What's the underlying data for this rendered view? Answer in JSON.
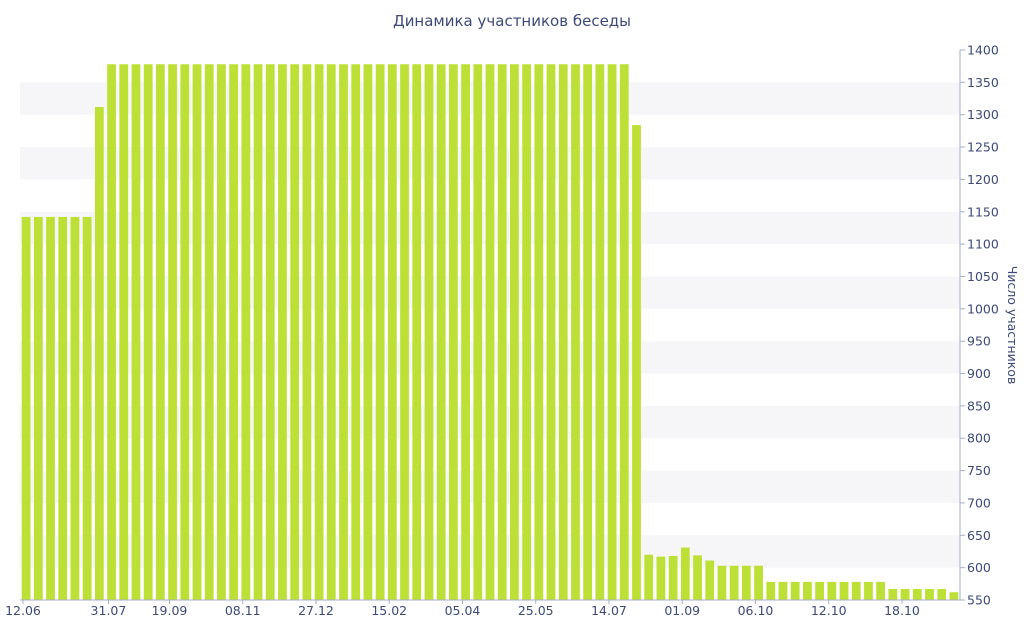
{
  "chart_data": {
    "type": "bar",
    "title": "Динамика участников беседы",
    "xlabel": "",
    "ylabel": "Число участников",
    "ylim": [
      550,
      1400
    ],
    "y_ticks": [
      550,
      600,
      650,
      700,
      750,
      800,
      850,
      900,
      950,
      1000,
      1050,
      1100,
      1150,
      1200,
      1250,
      1300,
      1350,
      1400
    ],
    "y_axis_side": "right",
    "grid": "alternating horizontal bands",
    "bar_color": "#bde037",
    "x_tick_labels": [
      {
        "index": 0,
        "label": "12.06"
      },
      {
        "index": 7,
        "label": "31.07"
      },
      {
        "index": 12,
        "label": "19.09"
      },
      {
        "index": 18,
        "label": "08.11"
      },
      {
        "index": 24,
        "label": "27.12"
      },
      {
        "index": 30,
        "label": "15.02"
      },
      {
        "index": 36,
        "label": "05.04"
      },
      {
        "index": 42,
        "label": "25.05"
      },
      {
        "index": 48,
        "label": "14.07"
      },
      {
        "index": 54,
        "label": "01.09"
      },
      {
        "index": 60,
        "label": "06.10"
      },
      {
        "index": 66,
        "label": "12.10"
      },
      {
        "index": 72,
        "label": "18.10"
      }
    ],
    "values": [
      1142,
      1142,
      1142,
      1142,
      1142,
      1142,
      1312,
      1378,
      1378,
      1378,
      1378,
      1378,
      1378,
      1378,
      1378,
      1378,
      1378,
      1378,
      1378,
      1378,
      1378,
      1378,
      1378,
      1378,
      1378,
      1378,
      1378,
      1378,
      1378,
      1378,
      1378,
      1378,
      1378,
      1378,
      1378,
      1378,
      1378,
      1378,
      1378,
      1378,
      1378,
      1378,
      1378,
      1378,
      1378,
      1378,
      1378,
      1378,
      1378,
      1378,
      1284,
      620,
      617,
      618,
      631,
      619,
      611,
      603,
      603,
      603,
      603,
      578,
      578,
      578,
      578,
      578,
      578,
      578,
      578,
      578,
      578,
      567,
      567,
      567,
      567,
      567,
      562
    ]
  }
}
